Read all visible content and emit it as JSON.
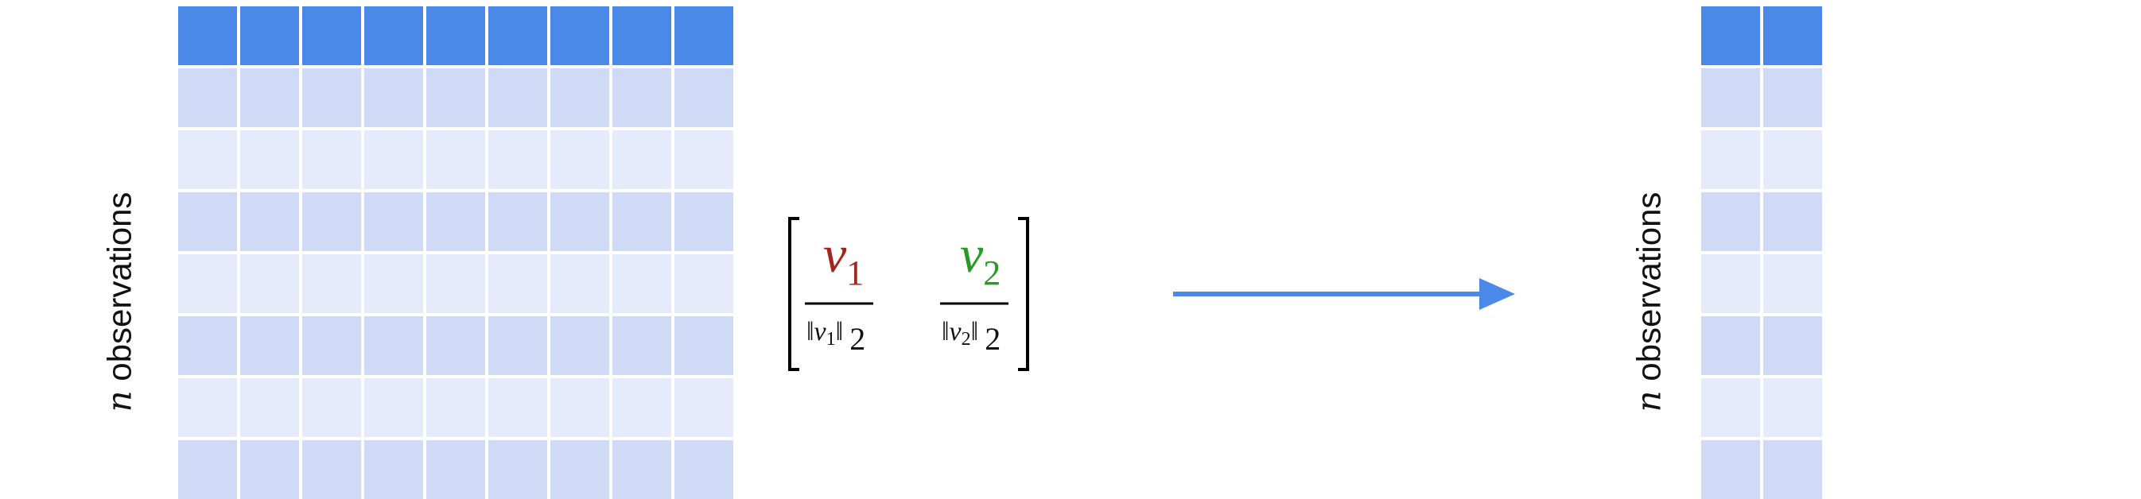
{
  "left_matrix": {
    "columns": 9,
    "rows": 8,
    "row_label_var": "n",
    "row_label_text": "observations"
  },
  "vector_matrix": {
    "entries": [
      {
        "numerator": "v",
        "subscript": "1",
        "norm_var": "v",
        "norm_sub": "1",
        "norm_order": "2",
        "color": "#a3261c"
      },
      {
        "numerator": "v",
        "subscript": "2",
        "norm_var": "v",
        "norm_sub": "2",
        "norm_order": "2",
        "color": "#2a9a25"
      }
    ]
  },
  "right_matrix": {
    "columns": 2,
    "rows": 8,
    "row_label_var": "n",
    "row_label_text": "observations"
  },
  "colors": {
    "header": "#4a89e8",
    "row_dark": "#cfdaf7",
    "row_light": "#e6ebfb",
    "arrow": "#4a89e8",
    "text": "#111111"
  }
}
